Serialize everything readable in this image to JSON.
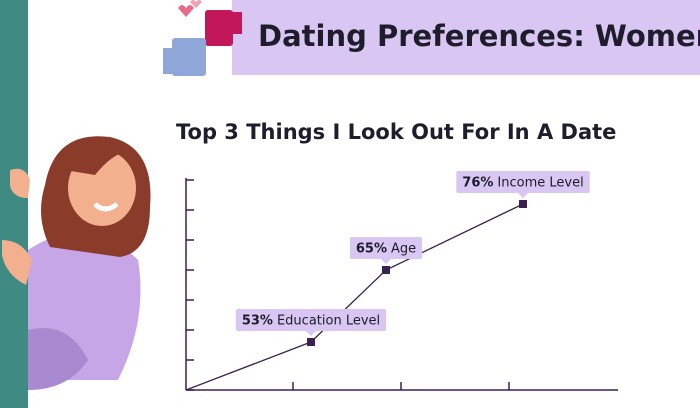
{
  "header": {
    "title": "Dating Preferences: Women"
  },
  "chart_data": {
    "type": "line",
    "title": "Top 3 Things I Look Out For In A Date",
    "categories": [
      "Education Level",
      "Age",
      "Income Level"
    ],
    "values": [
      53,
      65,
      76
    ],
    "value_labels": [
      "53%",
      "65%",
      "76%"
    ],
    "color": "#3a2150",
    "ylim": [
      45,
      80
    ],
    "yticks": [
      45,
      50,
      55,
      60,
      65,
      70,
      75,
      80
    ]
  }
}
